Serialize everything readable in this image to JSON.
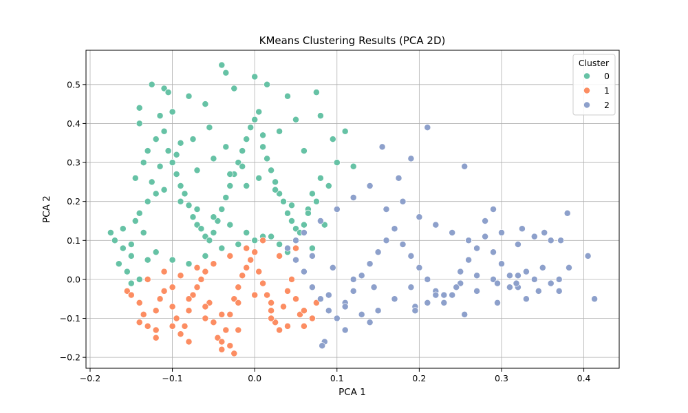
{
  "chart_data": {
    "type": "scatter",
    "title": "KMeans Clustering Results (PCA 2D)",
    "xlabel": "PCA 1",
    "ylabel": "PCA 2",
    "xlim": [
      -0.205,
      0.443
    ],
    "ylim": [
      -0.228,
      0.588
    ],
    "xticks": [
      -0.2,
      -0.1,
      0.0,
      0.1,
      0.2,
      0.3,
      0.4
    ],
    "xtick_labels": [
      "−0.2",
      "−0.1",
      "0.0",
      "0.1",
      "0.2",
      "0.3",
      "0.4"
    ],
    "yticks": [
      -0.2,
      -0.1,
      0.0,
      0.1,
      0.2,
      0.3,
      0.4,
      0.5
    ],
    "ytick_labels": [
      "−0.2",
      "−0.1",
      "0.0",
      "0.1",
      "0.2",
      "0.3",
      "0.4",
      "0.5"
    ],
    "grid": true,
    "legend": {
      "title": "Cluster",
      "placement": "top-right"
    },
    "series": [
      {
        "name": "0",
        "color": "#66c2a5",
        "x": [
          -0.175,
          -0.17,
          -0.16,
          -0.165,
          -0.155,
          -0.15,
          -0.145,
          -0.15,
          -0.14,
          -0.135,
          -0.13,
          -0.14,
          -0.135,
          -0.125,
          -0.12,
          -0.13,
          -0.14,
          -0.12,
          -0.115,
          -0.11,
          -0.105,
          -0.1,
          -0.095,
          -0.09,
          -0.085,
          -0.08,
          -0.075,
          -0.07,
          -0.065,
          -0.06,
          -0.055,
          -0.05,
          -0.045,
          -0.04,
          -0.035,
          -0.03,
          -0.025,
          -0.02,
          -0.015,
          -0.01,
          -0.005,
          0.0,
          0.005,
          0.01,
          0.015,
          0.02,
          0.025,
          0.03,
          0.035,
          0.04,
          0.045,
          0.05,
          0.055,
          0.06,
          0.065,
          0.07,
          0.075,
          0.08,
          0.09,
          0.1,
          -0.04,
          -0.035,
          -0.025,
          0.0,
          -0.11,
          -0.105,
          -0.08,
          -0.06,
          0.015,
          0.04,
          0.075,
          0.08,
          0.095,
          0.11,
          0.12,
          0.155,
          -0.14,
          -0.13,
          -0.125,
          -0.1,
          -0.09,
          -0.07,
          -0.05,
          -0.03,
          -0.01,
          0.01,
          0.03,
          0.05,
          0.06,
          -0.16,
          -0.15,
          -0.12,
          -0.1,
          -0.08,
          -0.06,
          -0.04,
          -0.02,
          0.0,
          0.02,
          0.04,
          -0.145,
          -0.11,
          -0.09,
          -0.07,
          -0.05,
          -0.03,
          -0.01,
          0.01,
          0.03,
          0.05,
          0.07,
          -0.13,
          -0.115,
          -0.095,
          -0.075,
          -0.055,
          -0.035,
          -0.015,
          0.005,
          0.025,
          0.045,
          0.065,
          0.085
        ],
        "y": [
          0.12,
          0.1,
          0.08,
          0.04,
          0.02,
          -0.01,
          0.15,
          0.06,
          0.17,
          0.12,
          0.05,
          0.0,
          0.3,
          0.25,
          0.22,
          0.2,
          0.44,
          0.36,
          0.42,
          0.38,
          0.33,
          0.3,
          0.27,
          0.24,
          0.22,
          0.19,
          0.16,
          0.14,
          0.13,
          0.11,
          0.1,
          0.12,
          0.15,
          0.18,
          0.21,
          0.24,
          0.27,
          0.3,
          0.33,
          0.36,
          0.39,
          0.41,
          0.43,
          0.37,
          0.31,
          0.28,
          0.25,
          0.22,
          0.2,
          0.17,
          0.15,
          0.13,
          0.12,
          0.14,
          0.18,
          0.22,
          0.2,
          0.26,
          0.24,
          0.3,
          0.55,
          0.53,
          0.49,
          0.52,
          0.49,
          0.48,
          0.47,
          0.45,
          0.5,
          0.47,
          0.48,
          0.42,
          0.36,
          0.38,
          0.29,
          0.34,
          0.4,
          0.33,
          0.5,
          0.43,
          0.35,
          0.28,
          0.31,
          0.27,
          0.24,
          0.34,
          0.38,
          0.41,
          0.33,
          0.13,
          0.09,
          0.07,
          0.05,
          0.04,
          0.06,
          0.08,
          0.09,
          0.1,
          0.11,
          0.07,
          0.26,
          0.23,
          0.2,
          0.18,
          0.16,
          0.14,
          0.12,
          0.11,
          0.09,
          0.1,
          0.08,
          0.2,
          0.29,
          0.32,
          0.36,
          0.39,
          0.34,
          0.29,
          0.26,
          0.23,
          0.19,
          0.17,
          0.14
        ]
      },
      {
        "name": "1",
        "color": "#fc8d62",
        "x": [
          -0.155,
          -0.15,
          -0.14,
          -0.135,
          -0.13,
          -0.12,
          -0.115,
          -0.11,
          -0.1,
          -0.095,
          -0.09,
          -0.085,
          -0.08,
          -0.075,
          -0.07,
          -0.065,
          -0.06,
          -0.055,
          -0.05,
          -0.045,
          -0.04,
          -0.035,
          -0.03,
          -0.025,
          -0.02,
          -0.015,
          -0.01,
          -0.005,
          0.0,
          0.005,
          0.01,
          0.015,
          0.02,
          0.025,
          0.03,
          0.035,
          0.04,
          0.045,
          0.05,
          0.055,
          0.06,
          0.07,
          0.075,
          -0.03,
          -0.025,
          -0.04,
          -0.08,
          -0.12,
          -0.1,
          -0.06,
          -0.02,
          0.02,
          0.04,
          0.06,
          -0.13,
          -0.11,
          -0.09,
          -0.07,
          -0.05,
          -0.03,
          -0.01,
          0.01,
          0.03,
          0.05,
          -0.14,
          -0.12,
          -0.1,
          -0.08,
          -0.06,
          -0.04,
          -0.02,
          0.0,
          0.02,
          0.04
        ],
        "y": [
          -0.03,
          -0.04,
          -0.06,
          -0.09,
          -0.12,
          -0.08,
          -0.05,
          -0.03,
          -0.07,
          -0.1,
          -0.14,
          -0.12,
          -0.08,
          -0.04,
          -0.02,
          0.0,
          0.02,
          -0.06,
          -0.11,
          -0.15,
          -0.18,
          -0.13,
          -0.09,
          -0.05,
          -0.02,
          0.01,
          0.03,
          0.05,
          0.07,
          0.02,
          -0.01,
          -0.04,
          -0.08,
          -0.11,
          -0.13,
          -0.07,
          -0.03,
          0.0,
          -0.05,
          -0.09,
          -0.12,
          -0.1,
          -0.06,
          -0.17,
          -0.19,
          -0.16,
          -0.16,
          -0.15,
          -0.12,
          -0.1,
          -0.13,
          -0.1,
          -0.12,
          -0.08,
          0.0,
          0.02,
          0.01,
          0.03,
          0.04,
          0.06,
          0.08,
          0.1,
          0.06,
          0.08,
          -0.11,
          -0.13,
          -0.02,
          -0.05,
          -0.07,
          -0.09,
          -0.06,
          -0.04,
          -0.06,
          -0.03
        ]
      },
      {
        "name": "2",
        "color": "#8da0cb",
        "x": [
          0.04,
          0.05,
          0.06,
          0.07,
          0.08,
          0.09,
          0.1,
          0.11,
          0.12,
          0.13,
          0.14,
          0.15,
          0.16,
          0.17,
          0.18,
          0.19,
          0.2,
          0.21,
          0.22,
          0.23,
          0.24,
          0.25,
          0.26,
          0.27,
          0.28,
          0.29,
          0.3,
          0.31,
          0.32,
          0.33,
          0.34,
          0.35,
          0.36,
          0.37,
          0.38,
          0.06,
          0.08,
          0.1,
          0.12,
          0.14,
          0.16,
          0.18,
          0.2,
          0.22,
          0.24,
          0.26,
          0.28,
          0.3,
          0.32,
          0.34,
          0.36,
          0.09,
          0.11,
          0.13,
          0.15,
          0.17,
          0.19,
          0.21,
          0.23,
          0.25,
          0.27,
          0.29,
          0.31,
          0.33,
          0.05,
          0.07,
          0.095,
          0.12,
          0.145,
          0.17,
          0.195,
          0.22,
          0.245,
          0.27,
          0.295,
          0.32,
          0.345,
          0.37,
          0.155,
          0.21,
          0.255,
          0.19,
          0.175,
          0.29,
          0.325,
          0.352,
          0.372,
          0.382,
          0.405,
          0.413,
          0.085,
          0.082,
          0.11,
          0.14,
          0.195,
          0.255,
          0.295,
          0.318
        ],
        "y": [
          0.08,
          0.05,
          0.02,
          -0.02,
          -0.05,
          -0.08,
          -0.1,
          -0.06,
          -0.03,
          0.01,
          0.04,
          0.07,
          0.1,
          0.13,
          0.09,
          0.06,
          0.03,
          0.0,
          -0.03,
          -0.06,
          -0.04,
          0.02,
          0.05,
          0.08,
          0.11,
          0.07,
          0.04,
          0.01,
          -0.02,
          -0.05,
          0.0,
          0.03,
          -0.01,
          -0.03,
          0.17,
          0.12,
          0.15,
          0.18,
          0.21,
          0.24,
          0.18,
          0.2,
          0.16,
          0.14,
          0.12,
          0.1,
          0.15,
          0.12,
          0.09,
          0.11,
          0.1,
          -0.04,
          -0.07,
          -0.09,
          -0.08,
          -0.05,
          -0.02,
          -0.06,
          -0.04,
          -0.01,
          -0.03,
          0.0,
          -0.02,
          0.02,
          0.1,
          0.06,
          0.03,
          0.0,
          -0.02,
          -0.05,
          -0.07,
          -0.04,
          -0.02,
          0.01,
          -0.01,
          0.01,
          -0.03,
          0.0,
          0.34,
          0.39,
          0.29,
          0.31,
          0.26,
          0.18,
          0.13,
          0.12,
          0.1,
          0.03,
          0.06,
          -0.05,
          -0.16,
          -0.17,
          -0.13,
          -0.11,
          -0.08,
          -0.09,
          -0.06,
          -0.01
        ]
      }
    ]
  }
}
